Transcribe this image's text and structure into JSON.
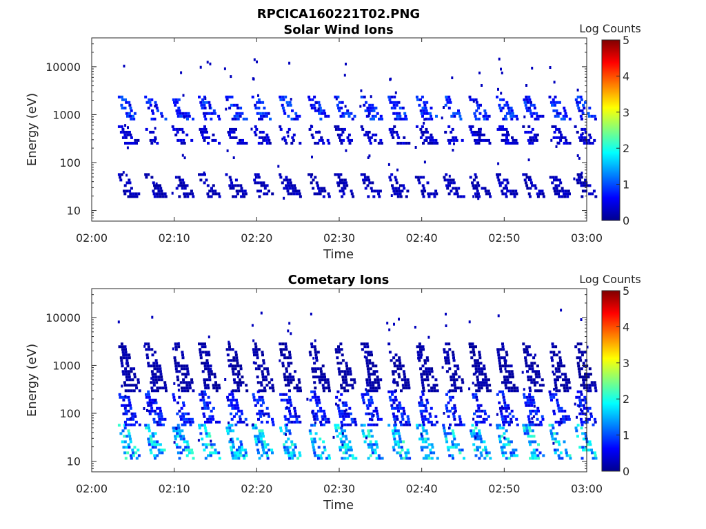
{
  "figure": {
    "title": "RPCICA160221T02.PNG"
  },
  "chart_data": [
    {
      "type": "heatmap",
      "title": "Solar Wind Ions",
      "xlabel": "Time",
      "ylabel": "Energy (eV)",
      "x_ticks": [
        "02:00",
        "02:10",
        "02:20",
        "02:30",
        "02:40",
        "02:50",
        "03:00"
      ],
      "x_range": [
        "02:00",
        "03:00"
      ],
      "y_scale": "log",
      "y_ticks": [
        "10",
        "100",
        "1000",
        "10000"
      ],
      "y_range": [
        6,
        40000
      ],
      "colorbar": {
        "label": "Log Counts",
        "ticks": [
          "0",
          "1",
          "2",
          "3",
          "4",
          "5"
        ],
        "range": [
          0,
          5
        ],
        "colormap": "jet"
      },
      "pulse_minutes": [
        3.5,
        6.7,
        10.0,
        13.2,
        16.5,
        19.7,
        23.0,
        26.5,
        29.7,
        32.9,
        36.2,
        39.6,
        42.8,
        46.0,
        49.3,
        52.5,
        55.7,
        58.8
      ],
      "bands": [
        {
          "energy_ev": [
            20,
            60
          ],
          "log_counts": 0.3
        },
        {
          "energy_ev": [
            250,
            600
          ],
          "log_counts": 0.4
        },
        {
          "energy_ev": [
            800,
            2500
          ],
          "log_counts": 0.8
        }
      ],
      "grid": false
    },
    {
      "type": "heatmap",
      "title": "Cometary Ions",
      "xlabel": "Time",
      "ylabel": "Energy (eV)",
      "x_ticks": [
        "02:00",
        "02:10",
        "02:20",
        "02:30",
        "02:40",
        "02:50",
        "03:00"
      ],
      "x_range": [
        "02:00",
        "03:00"
      ],
      "y_scale": "log",
      "y_ticks": [
        "10",
        "100",
        "1000",
        "10000"
      ],
      "y_range": [
        6,
        40000
      ],
      "colorbar": {
        "label": "Log Counts",
        "ticks": [
          "0",
          "1",
          "2",
          "3",
          "4",
          "5"
        ],
        "range": [
          0,
          5
        ],
        "colormap": "jet"
      },
      "pulse_minutes": [
        3.5,
        6.7,
        10.0,
        13.2,
        16.5,
        19.7,
        23.0,
        26.5,
        29.7,
        32.9,
        36.2,
        39.6,
        42.8,
        46.0,
        49.3,
        52.5,
        55.7,
        58.8
      ],
      "bands": [
        {
          "energy_ev": [
            12,
            60
          ],
          "log_counts": 1.6
        },
        {
          "energy_ev": [
            60,
            300
          ],
          "log_counts": 0.7
        },
        {
          "energy_ev": [
            300,
            3000
          ],
          "log_counts": 0.2
        }
      ],
      "grid": false
    }
  ]
}
